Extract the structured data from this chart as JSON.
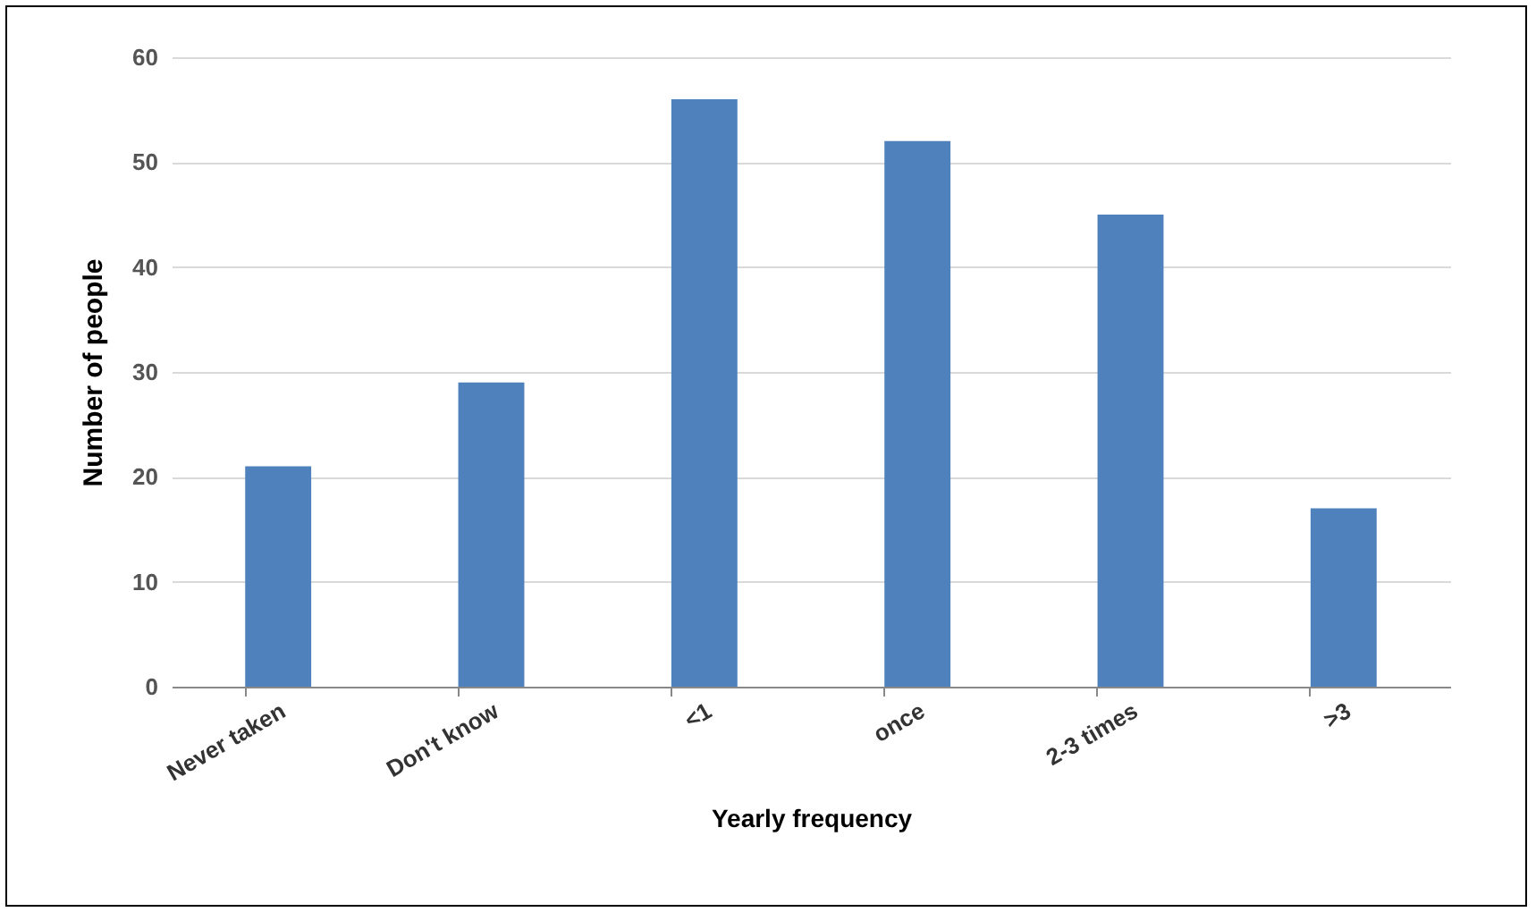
{
  "chart_data": {
    "type": "bar",
    "xlabel": "Yearly frequency",
    "ylabel": "Number of people",
    "categories": [
      "Never taken",
      "Don't know",
      "<1",
      "once",
      "2-3 times",
      ">3"
    ],
    "values": [
      21,
      29,
      56,
      52,
      45,
      17
    ],
    "color": "#4f81bd",
    "ylim": [
      0,
      60
    ],
    "yticks": [
      0,
      10,
      20,
      30,
      40,
      50,
      60
    ],
    "grid": "y"
  }
}
